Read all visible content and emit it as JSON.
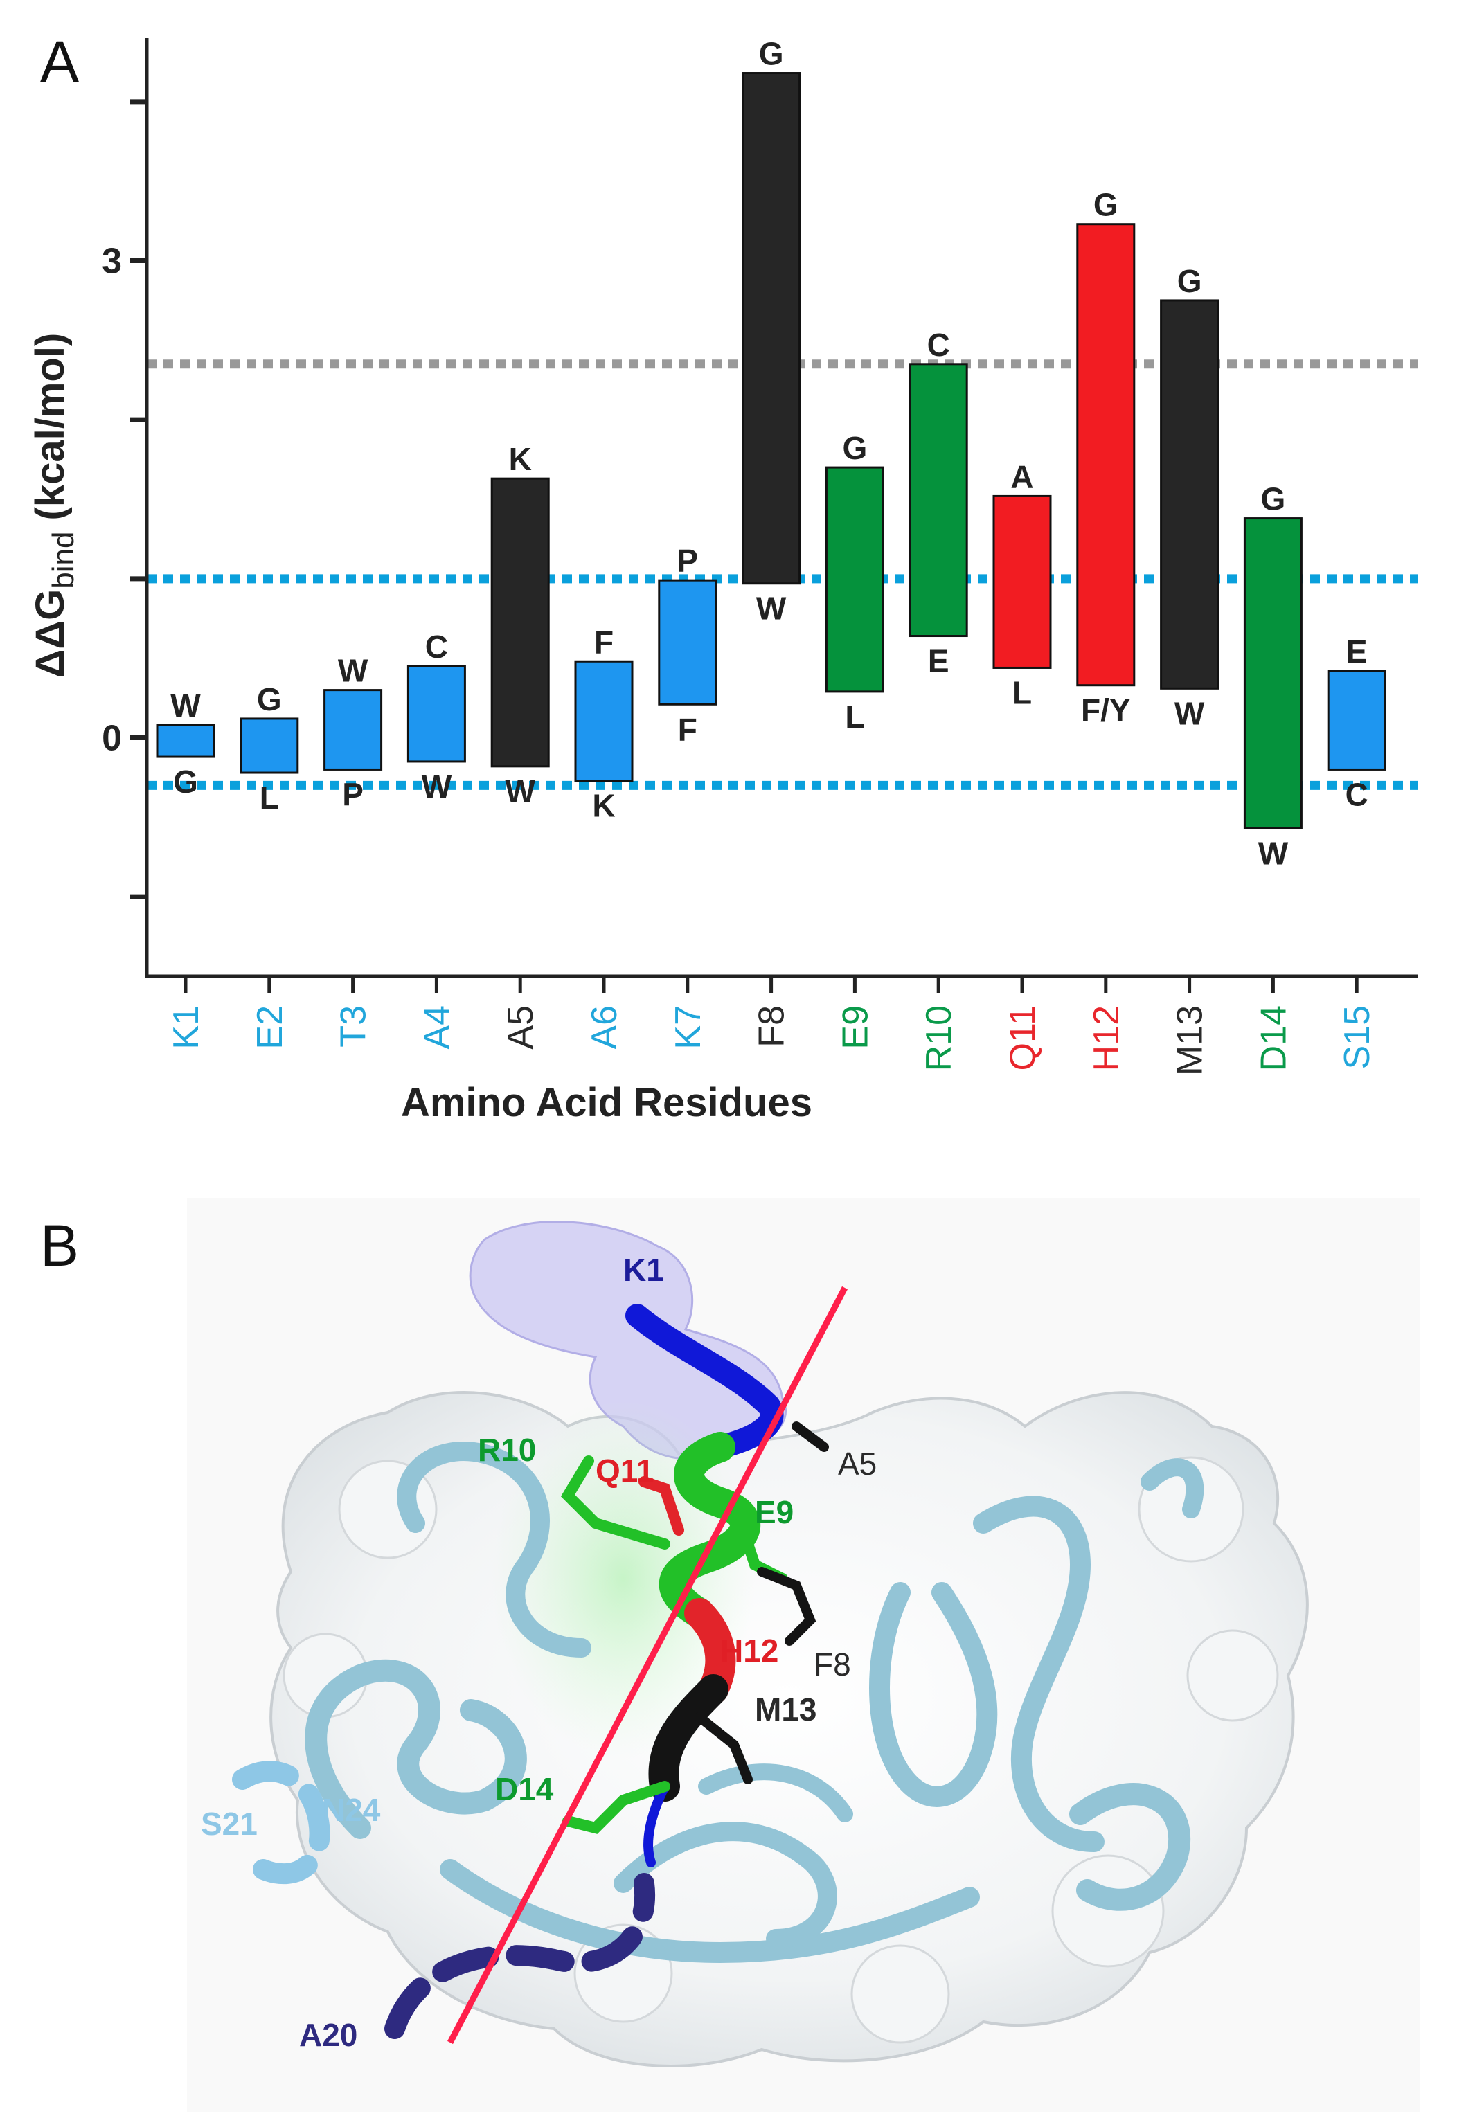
{
  "colors": {
    "blue": "#1e96f0",
    "black": "#262626",
    "green": "#05923c",
    "red": "#f21c22",
    "ref_gray": "#999999",
    "ref_blue": "#0aa0dc",
    "label_blue": "#21a6db",
    "label_green": "#0a9a4a",
    "label_red": "#e8262c",
    "label_black": "#2a2a2a"
  },
  "panel_a": {
    "letter": "A"
  },
  "panel_b": {
    "letter": "B",
    "residue_labels": [
      {
        "name": "K1",
        "color": "#1c1c9a"
      },
      {
        "name": "R10",
        "color": "#0d9a2e"
      },
      {
        "name": "Q11",
        "color": "#e01f26"
      },
      {
        "name": "A5",
        "color": "#2a2a2a"
      },
      {
        "name": "E9",
        "color": "#0d9a2e"
      },
      {
        "name": "H12",
        "color": "#e01f26"
      },
      {
        "name": "F8",
        "color": "#2a2a2a"
      },
      {
        "name": "M13",
        "color": "#2a2a2a"
      },
      {
        "name": "D14",
        "color": "#0d9a2e"
      },
      {
        "name": "S21",
        "color": "#8ec7e6"
      },
      {
        "name": "N24",
        "color": "#8ec7e6"
      },
      {
        "name": "A20",
        "color": "#2e2a80"
      }
    ]
  },
  "chart_data": {
    "type": "bar",
    "subtype": "floating-range",
    "title": "",
    "xlabel": "Amino Acid Residues",
    "ylabel": "ΔΔG",
    "ylabel_subscript": "bind",
    "ylabel_units": " (kcal/mol)",
    "ylim": [
      -1.5,
      4.4
    ],
    "yticks": [
      -1,
      0,
      1,
      2,
      3,
      4
    ],
    "ytick_labels": {
      "0": "0",
      "3": "3"
    },
    "grid": false,
    "reference_lines": [
      {
        "y": 2.35,
        "color": "#999999",
        "style": "dotted"
      },
      {
        "y": 1.0,
        "color": "#0aa0dc",
        "style": "dotted"
      },
      {
        "y": -0.3,
        "color": "#0aa0dc",
        "style": "dotted"
      }
    ],
    "bars": [
      {
        "residue": "K1",
        "low": -0.12,
        "high": 0.08,
        "top_label": "W",
        "bottom_label": "G",
        "color": "blue",
        "label_color": "label_blue"
      },
      {
        "residue": "E2",
        "low": -0.22,
        "high": 0.12,
        "top_label": "G",
        "bottom_label": "L",
        "color": "blue",
        "label_color": "label_blue"
      },
      {
        "residue": "T3",
        "low": -0.2,
        "high": 0.3,
        "top_label": "W",
        "bottom_label": "P",
        "color": "blue",
        "label_color": "label_blue"
      },
      {
        "residue": "A4",
        "low": -0.15,
        "high": 0.45,
        "top_label": "C",
        "bottom_label": "W",
        "color": "blue",
        "label_color": "label_blue"
      },
      {
        "residue": "A5",
        "low": -0.18,
        "high": 1.63,
        "top_label": "K",
        "bottom_label": "W",
        "color": "black",
        "label_color": "label_black"
      },
      {
        "residue": "A6",
        "low": -0.27,
        "high": 0.48,
        "top_label": "F",
        "bottom_label": "K",
        "color": "blue",
        "label_color": "label_blue"
      },
      {
        "residue": "K7",
        "low": 0.21,
        "high": 0.99,
        "top_label": "P",
        "bottom_label": "F",
        "color": "blue",
        "label_color": "label_blue"
      },
      {
        "residue": "F8",
        "low": 0.97,
        "high": 4.18,
        "top_label": "G",
        "bottom_label": "W",
        "color": "black",
        "label_color": "label_black"
      },
      {
        "residue": "E9",
        "low": 0.29,
        "high": 1.7,
        "top_label": "G",
        "bottom_label": "L",
        "color": "green",
        "label_color": "label_green"
      },
      {
        "residue": "R10",
        "low": 0.64,
        "high": 2.35,
        "top_label": "C",
        "bottom_label": "E",
        "color": "green",
        "label_color": "label_green"
      },
      {
        "residue": "Q11",
        "low": 0.44,
        "high": 1.52,
        "top_label": "A",
        "bottom_label": "L",
        "color": "red",
        "label_color": "label_red"
      },
      {
        "residue": "H12",
        "low": 0.33,
        "high": 3.23,
        "top_label": "G",
        "bottom_label": "F/Y",
        "color": "red",
        "label_color": "label_red"
      },
      {
        "residue": "M13",
        "low": 0.31,
        "high": 2.75,
        "top_label": "G",
        "bottom_label": "W",
        "color": "black",
        "label_color": "label_black"
      },
      {
        "residue": "D14",
        "low": -0.57,
        "high": 1.38,
        "top_label": "G",
        "bottom_label": "W",
        "color": "green",
        "label_color": "label_green"
      },
      {
        "residue": "S15",
        "low": -0.2,
        "high": 0.42,
        "top_label": "E",
        "bottom_label": "C",
        "color": "blue",
        "label_color": "label_blue"
      }
    ]
  }
}
